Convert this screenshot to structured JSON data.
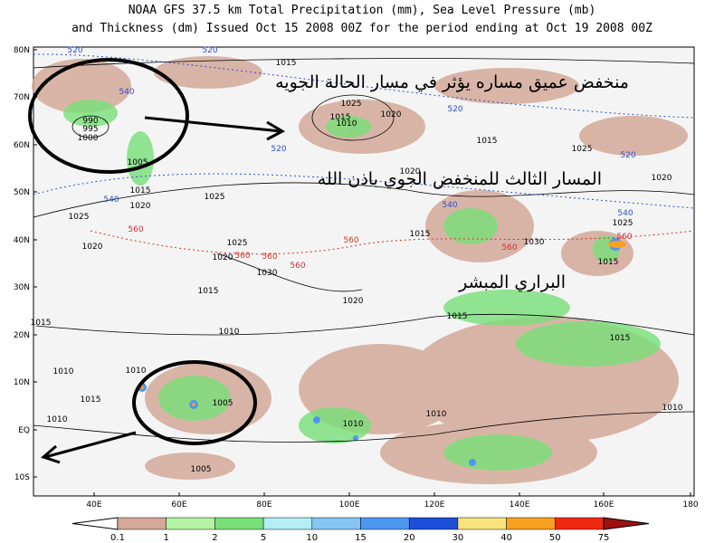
{
  "header": {
    "title_line1": "NOAA GFS 37.5 km Total Precipitation (mm), Sea Level Pressure (mb)",
    "title_line2": "and Thickness (dm)  Issued Oct 15 2008 00Z for the period ending at Oct 19 2008 00Z"
  },
  "map": {
    "lat_labels": [
      "80N",
      "70N",
      "60N",
      "50N",
      "40N",
      "30N",
      "20N",
      "10N",
      "EQ",
      "10S"
    ],
    "lon_labels": [
      "40E",
      "60E",
      "80E",
      "100E",
      "120E",
      "140E",
      "160E",
      "180"
    ],
    "contour_labels": [
      "520",
      "520",
      "1015",
      "540",
      "990",
      "995",
      "1000",
      "1025",
      "1015",
      "1020",
      "1010",
      "520",
      "1015",
      "1025",
      "520",
      "1005",
      "1015",
      "1020",
      "540",
      "1025",
      "1025",
      "560",
      "1020",
      "1025",
      "1020",
      "560",
      "560",
      "1030",
      "560",
      "1015",
      "1020",
      "1020",
      "540",
      "1015",
      "560",
      "1030",
      "560",
      "1025",
      "540",
      "560",
      "1015",
      "1020",
      "520",
      "1015",
      "1015",
      "1015",
      "1010",
      "1010",
      "1010",
      "1015",
      "1010",
      "1005",
      "1005",
      "1010",
      "1010",
      "1010"
    ],
    "annotations": [
      "منخفض عميق مساره يؤثر في مسار الحالة الجويه",
      "المسار الثالث للمنخفض الجوي باذن الله",
      "البراري المبشر"
    ]
  },
  "colorbar": {
    "labels": [
      "0.1",
      "1",
      "2",
      "5",
      "10",
      "15",
      "20",
      "30",
      "40",
      "50",
      "75"
    ],
    "colors": [
      "#ffffff",
      "#d4a99a",
      "#b4f2a4",
      "#78e078",
      "#b4eef4",
      "#86c4f2",
      "#4c98f0",
      "#1c4ed8",
      "#f8e47c",
      "#f8a020",
      "#f02810",
      "#a01010"
    ]
  }
}
